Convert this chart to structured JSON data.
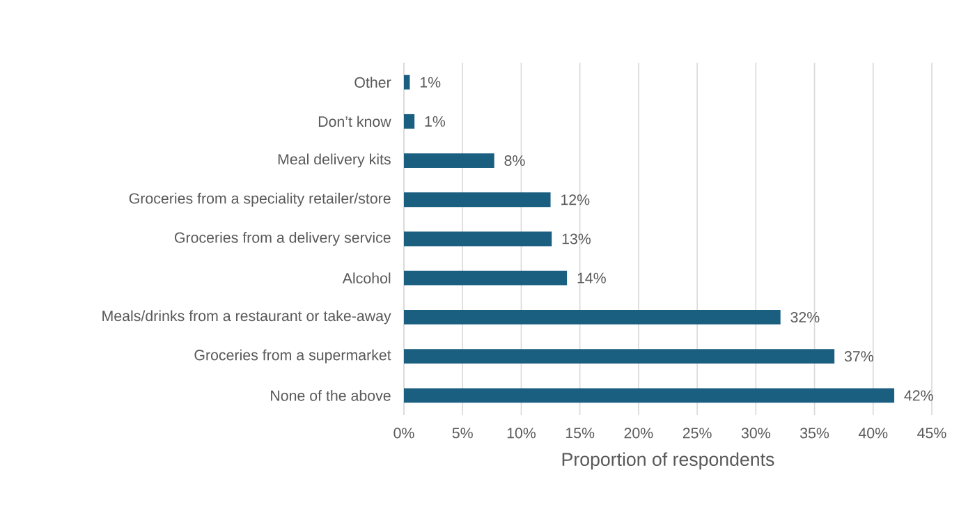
{
  "chart_data": {
    "type": "bar",
    "orientation": "horizontal",
    "xlabel": "Proportion of respondents",
    "categories": [
      "Other",
      "Don’t know",
      "Meal delivery kits",
      "Groceries from a speciality retailer/store",
      "Groceries from a delivery service",
      "Alcohol",
      "Meals/drinks from a restaurant or take-away",
      "Groceries from a supermarket",
      "None of the above"
    ],
    "values": [
      0.5,
      0.9,
      7.7,
      12.5,
      12.6,
      13.9,
      32.1,
      36.7,
      41.8
    ],
    "value_labels": [
      "1%",
      "1%",
      "8%",
      "12%",
      "13%",
      "14%",
      "32%",
      "37%",
      "42%"
    ],
    "color": "#1a5e80",
    "xlim": [
      0,
      45
    ],
    "xticks": [
      {
        "value": 0,
        "label": "0%"
      },
      {
        "value": 5,
        "label": "5%"
      },
      {
        "value": 10,
        "label": "10%"
      },
      {
        "value": 15,
        "label": "15%"
      },
      {
        "value": 20,
        "label": "20%"
      },
      {
        "value": 25,
        "label": "25%"
      },
      {
        "value": 30,
        "label": "30%"
      },
      {
        "value": 35,
        "label": "35%"
      },
      {
        "value": 40,
        "label": "40%"
      },
      {
        "value": 45,
        "label": "45%"
      }
    ],
    "grid": "x"
  }
}
